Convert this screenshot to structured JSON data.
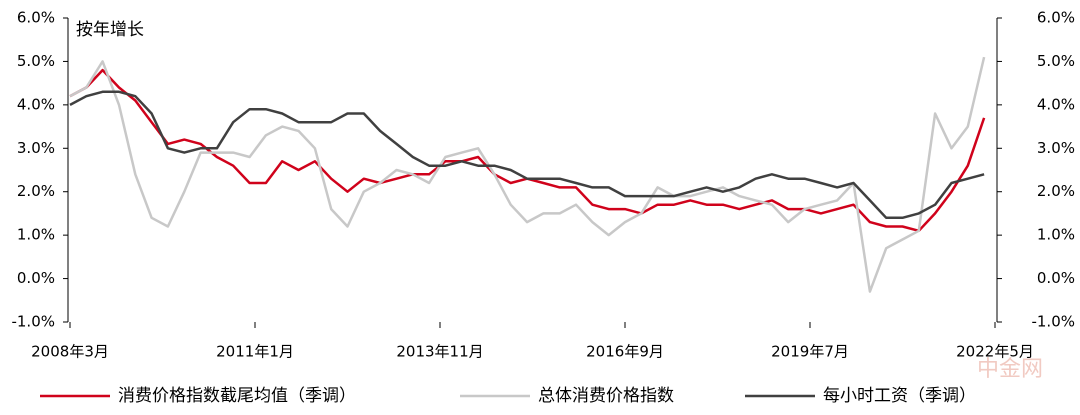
{
  "chart_data": {
    "type": "line",
    "ylabel": "按年增长",
    "x": [
      "2008-03",
      "2008-06",
      "2008-09",
      "2008-12",
      "2009-03",
      "2009-06",
      "2009-09",
      "2009-12",
      "2010-03",
      "2010-06",
      "2010-09",
      "2010-12",
      "2011-03",
      "2011-06",
      "2011-09",
      "2011-12",
      "2012-03",
      "2012-06",
      "2012-09",
      "2012-12",
      "2013-03",
      "2013-06",
      "2013-09",
      "2013-12",
      "2014-03",
      "2014-06",
      "2014-09",
      "2014-12",
      "2015-03",
      "2015-06",
      "2015-09",
      "2015-12",
      "2016-03",
      "2016-06",
      "2016-09",
      "2016-12",
      "2017-03",
      "2017-06",
      "2017-09",
      "2017-12",
      "2018-03",
      "2018-06",
      "2018-09",
      "2018-12",
      "2019-03",
      "2019-06",
      "2019-09",
      "2019-12",
      "2020-03",
      "2020-06",
      "2020-09",
      "2020-12",
      "2021-03",
      "2021-06",
      "2021-09",
      "2021-12",
      "2022-03"
    ],
    "series": [
      {
        "name": "消费价格指数截尾均值（季调）",
        "color": "#d0021b",
        "values": [
          4.2,
          4.4,
          4.8,
          4.4,
          4.1,
          3.6,
          3.1,
          3.2,
          3.1,
          2.8,
          2.6,
          2.2,
          2.2,
          2.7,
          2.5,
          2.7,
          2.3,
          2.0,
          2.3,
          2.2,
          2.3,
          2.4,
          2.4,
          2.7,
          2.7,
          2.8,
          2.4,
          2.2,
          2.3,
          2.2,
          2.1,
          2.1,
          1.7,
          1.6,
          1.6,
          1.5,
          1.7,
          1.7,
          1.8,
          1.7,
          1.7,
          1.6,
          1.7,
          1.8,
          1.6,
          1.6,
          1.5,
          1.6,
          1.7,
          1.3,
          1.2,
          1.2,
          1.1,
          1.5,
          2.0,
          2.6,
          3.7
        ]
      },
      {
        "name": "总体消费价格指数",
        "color": "#c8c8c8",
        "values": [
          4.2,
          4.4,
          5.0,
          4.0,
          2.4,
          1.4,
          1.2,
          2.0,
          2.9,
          2.9,
          2.9,
          2.8,
          3.3,
          3.5,
          3.4,
          3.0,
          1.6,
          1.2,
          2.0,
          2.2,
          2.5,
          2.4,
          2.2,
          2.8,
          2.9,
          3.0,
          2.4,
          1.7,
          1.3,
          1.5,
          1.5,
          1.7,
          1.3,
          1.0,
          1.3,
          1.5,
          2.1,
          1.9,
          1.9,
          2.0,
          2.1,
          1.9,
          1.8,
          1.7,
          1.3,
          1.6,
          1.7,
          1.8,
          2.2,
          -0.3,
          0.7,
          0.9,
          1.1,
          3.8,
          3.0,
          3.5,
          5.1
        ]
      },
      {
        "name": "每小时工资（季调）",
        "color": "#404040",
        "values": [
          4.0,
          4.2,
          4.3,
          4.3,
          4.2,
          3.8,
          3.0,
          2.9,
          3.0,
          3.0,
          3.6,
          3.9,
          3.9,
          3.8,
          3.6,
          3.6,
          3.6,
          3.8,
          3.8,
          3.4,
          3.1,
          2.8,
          2.6,
          2.6,
          2.7,
          2.6,
          2.6,
          2.5,
          2.3,
          2.3,
          2.3,
          2.2,
          2.1,
          2.1,
          1.9,
          1.9,
          1.9,
          1.9,
          2.0,
          2.1,
          2.0,
          2.1,
          2.3,
          2.4,
          2.3,
          2.3,
          2.2,
          2.1,
          2.2,
          1.8,
          1.4,
          1.4,
          1.5,
          1.7,
          2.2,
          2.3,
          2.4
        ]
      }
    ],
    "xlim": [
      "2008-03",
      "2022-05"
    ],
    "xticks": [
      {
        "value": "2008-03",
        "label": "2008年3月"
      },
      {
        "value": "2011-01",
        "label": "2011年1月"
      },
      {
        "value": "2013-11",
        "label": "2013年11月"
      },
      {
        "value": "2016-09",
        "label": "2016年9月"
      },
      {
        "value": "2019-07",
        "label": "2019年7月"
      },
      {
        "value": "2022-05",
        "label": "2022年5月"
      }
    ],
    "ylim": [
      -1,
      6
    ],
    "yticks": [
      {
        "value": -1,
        "label": "-1.0%"
      },
      {
        "value": 0,
        "label": "0.0%"
      },
      {
        "value": 1,
        "label": "1.0%"
      },
      {
        "value": 2,
        "label": "2.0%"
      },
      {
        "value": 3,
        "label": "3.0%"
      },
      {
        "value": 4,
        "label": "4.0%"
      },
      {
        "value": 5,
        "label": "5.0%"
      },
      {
        "value": 6,
        "label": "6.0%"
      }
    ],
    "y2lim": [
      -1,
      6
    ],
    "y2ticks": [
      {
        "value": -1,
        "label": "-1.0%"
      },
      {
        "value": 0,
        "label": "0.0%"
      },
      {
        "value": 1,
        "label": "1.0%"
      },
      {
        "value": 2,
        "label": "2.0%"
      },
      {
        "value": 3,
        "label": "3.0%"
      },
      {
        "value": 4,
        "label": "4.0%"
      },
      {
        "value": 5,
        "label": "5.0%"
      },
      {
        "value": 6,
        "label": "6.0%"
      }
    ],
    "watermark": "中金网"
  }
}
